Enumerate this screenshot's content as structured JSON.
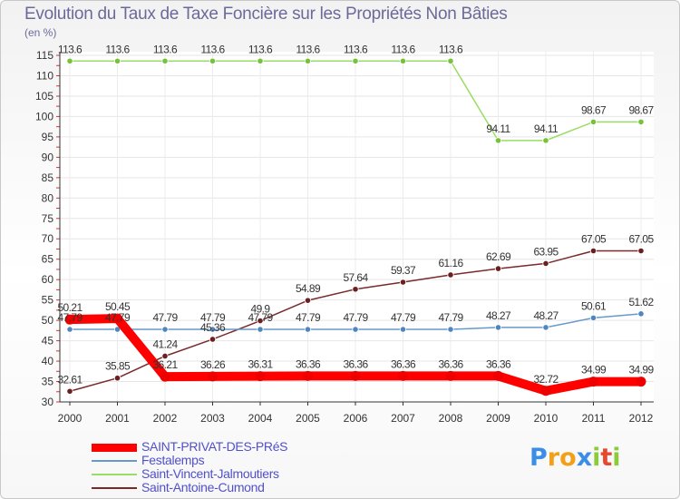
{
  "chart_data": {
    "type": "line",
    "title": "Evolution du Taux de Taxe Foncière sur les Propriétés Non Bâties",
    "ylabel": "(en %)",
    "xlabel": "",
    "ylim": [
      30,
      115
    ],
    "yticks": [
      30,
      35,
      40,
      45,
      50,
      55,
      60,
      65,
      70,
      75,
      80,
      85,
      90,
      95,
      100,
      105,
      110,
      115
    ],
    "categories": [
      "2000",
      "2001",
      "2002",
      "2003",
      "2004",
      "2005",
      "2006",
      "2007",
      "2008",
      "2009",
      "2010",
      "2011",
      "2012"
    ],
    "series": [
      {
        "name": "Saint-Vincent-Jalmoutiers",
        "color": "#99dd66",
        "dot": "#77c23a",
        "values": [
          113.6,
          113.6,
          113.6,
          113.6,
          113.6,
          113.6,
          113.6,
          113.6,
          113.6,
          94.11,
          94.11,
          98.67,
          98.67
        ],
        "labels": [
          "113.6",
          "113.6",
          "113.6",
          "113.6",
          "113.6",
          "113.6",
          "113.6",
          "113.6",
          "113.6",
          "94.11",
          "94.11",
          "98.67",
          "98.67"
        ]
      },
      {
        "name": "Saint-Antoine-Cumond",
        "color": "#7a2a2a",
        "dot": "#6b1f1f",
        "values": [
          32.61,
          35.85,
          41.24,
          45.36,
          49.9,
          54.89,
          57.64,
          59.37,
          61.16,
          62.69,
          63.95,
          67.05,
          67.05
        ],
        "labels": [
          "32.61",
          "35.85",
          "41.24",
          "45.36",
          "49.9",
          "54.89",
          "57.64",
          "59.37",
          "61.16",
          "62.69",
          "63.95",
          "67.05",
          "67.05"
        ]
      },
      {
        "name": "Festalemps",
        "color": "#6699cc",
        "dot": "#4f86c0",
        "values": [
          47.79,
          47.79,
          47.79,
          47.79,
          47.79,
          47.79,
          47.79,
          47.79,
          47.79,
          48.27,
          48.27,
          50.61,
          51.62
        ],
        "labels": [
          "47.79",
          "47.79",
          "47.79",
          "47.79",
          "47.79",
          "47.79",
          "47.79",
          "47.79",
          "47.79",
          "48.27",
          "48.27",
          "50.61",
          "51.62"
        ]
      },
      {
        "name": "SAINT-PRIVAT-DES-PRéS",
        "color": "#ff0000",
        "dot": "#ee0000",
        "values": [
          50.21,
          50.45,
          36.21,
          36.26,
          36.31,
          36.36,
          36.36,
          36.36,
          36.36,
          36.36,
          32.72,
          34.99,
          34.99
        ],
        "labels": [
          "50.21",
          "50.45",
          "36.21",
          "36.26",
          "36.31",
          "36.36",
          "36.36",
          "36.36",
          "36.36",
          "36.36",
          "32.72",
          "34.99",
          "34.99"
        ]
      }
    ],
    "legend_order": [
      "SAINT-PRIVAT-DES-PRéS",
      "Festalemps",
      "Saint-Vincent-Jalmoutiers",
      "Saint-Antoine-Cumond"
    ],
    "grid": true,
    "legend_position": "bottom-left"
  },
  "legend": {
    "items": [
      {
        "label": "SAINT-PRIVAT-DES-PRéS",
        "color": "#ff0000"
      },
      {
        "label": "Festalemps",
        "color": "#6699cc"
      },
      {
        "label": "Saint-Vincent-Jalmoutiers",
        "color": "#99dd66"
      },
      {
        "label": "Saint-Antoine-Cumond",
        "color": "#7a2a2a"
      }
    ]
  },
  "branding": {
    "logo_letters": [
      "P",
      "r",
      "o",
      "x",
      "i",
      "t",
      "i"
    ],
    "logo_colors": [
      "#3a8ee6",
      "#f2a01a",
      "#f2a01a",
      "#3a8ee6",
      "#8ccc3a",
      "#e64a2e",
      "#8ccc3a"
    ]
  }
}
